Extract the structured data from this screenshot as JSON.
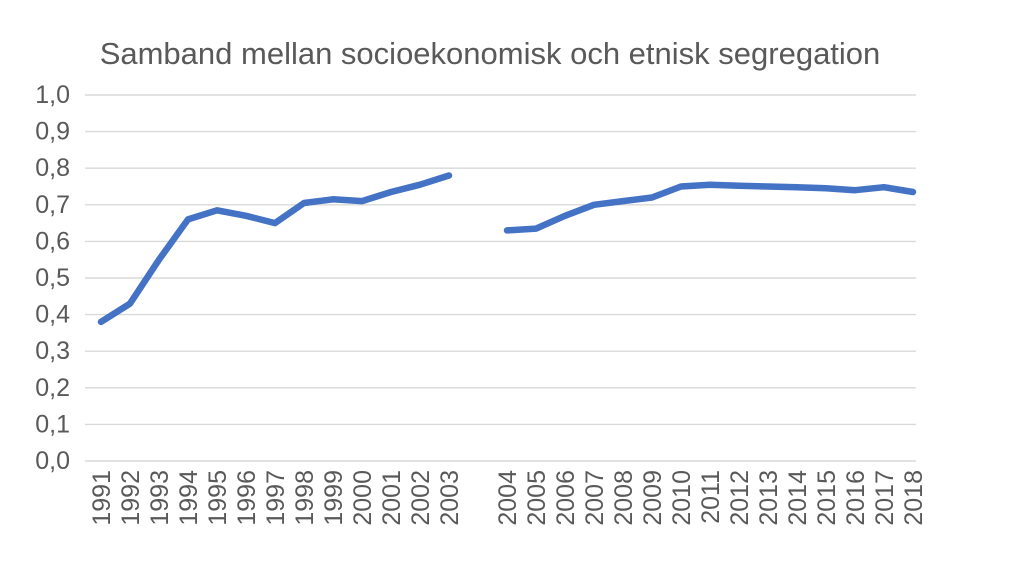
{
  "title": "Samband mellan socioekonomisk och etnisk segregation",
  "colors": {
    "line": "#4472C4",
    "gridline": "#D9D9D9",
    "axis_text": "#595959",
    "background": "#FFFFFF"
  },
  "chart_data": {
    "type": "line",
    "title": "Samband mellan socioekonomisk och etnisk segregation",
    "categories": [
      "1991",
      "1992",
      "1993",
      "1994",
      "1995",
      "1996",
      "1997",
      "1998",
      "1999",
      "2000",
      "2001",
      "2002",
      "2003",
      "",
      "2004",
      "2005",
      "2006",
      "2007",
      "2008",
      "2009",
      "2010",
      "2011",
      "2012",
      "2013",
      "2014",
      "2015",
      "2016",
      "2017",
      "2018"
    ],
    "values": [
      0.38,
      0.43,
      0.55,
      0.66,
      0.685,
      0.67,
      0.65,
      0.705,
      0.715,
      0.71,
      0.735,
      0.755,
      0.78,
      null,
      0.63,
      0.635,
      0.67,
      0.7,
      0.71,
      0.72,
      0.75,
      0.755,
      0.752,
      0.75,
      0.748,
      0.745,
      0.74,
      0.748,
      0.735
    ],
    "ylim": [
      0.0,
      1.0
    ],
    "ytick_step": 0.1,
    "ytick_labels": [
      "0,0",
      "0,1",
      "0,2",
      "0,3",
      "0,4",
      "0,5",
      "0,6",
      "0,7",
      "0,8",
      "0,9",
      "1,0"
    ],
    "grid": true,
    "legend": false,
    "xlabel": "",
    "ylabel": "",
    "x_label_rotation": -90,
    "series_count": 1
  }
}
